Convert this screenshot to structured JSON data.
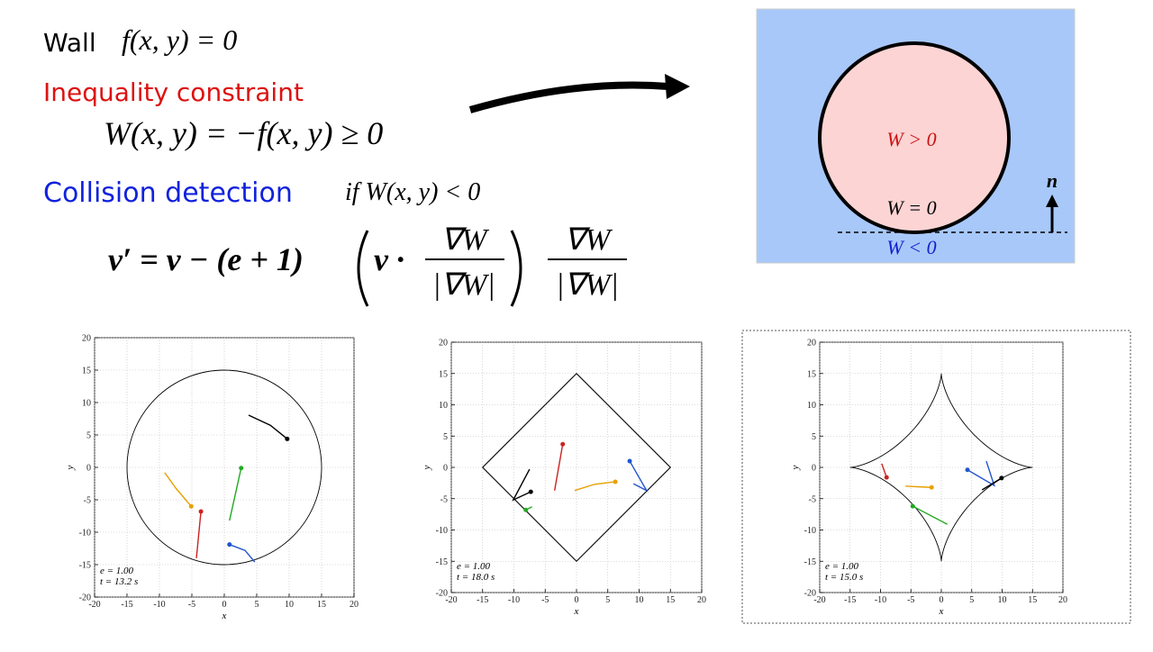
{
  "slide": {
    "wall_label": "Wall",
    "wall_eq": "f(x, y) = 0",
    "constraint_label": "Inequality constraint",
    "constraint_eq": "W(x, y) = −f(x, y) ≥ 0",
    "collision_label": "Collision detection",
    "collision_cond": "if  W(x, y) < 0",
    "formula": {
      "lhs": "v′ = v − (e + 1)",
      "dot": "v ·",
      "numerator": "∇W",
      "denominator": "|∇W|"
    }
  },
  "diagram": {
    "inside": "W > 0",
    "boundary": "W = 0",
    "outside": "W < 0",
    "normal": "n"
  },
  "chart_data": [
    {
      "type": "line",
      "wall": {
        "shape": "circle",
        "size": 15
      },
      "xlim": [
        -20,
        20
      ],
      "ylim": [
        -20,
        20
      ],
      "xticks": [
        -20,
        -15,
        -10,
        -5,
        0,
        5,
        10,
        15,
        20
      ],
      "yticks": [
        -20,
        -15,
        -10,
        -5,
        0,
        5,
        10,
        15,
        20
      ],
      "xlabel": "x",
      "ylabel": "y",
      "annotations": [
        "e = 1.00",
        "t = 13.2 s"
      ],
      "grid": true,
      "series": [
        {
          "color": "#000000",
          "x": [
            3.75,
            7.1,
            9.7
          ],
          "y": [
            8.05,
            6.5,
            4.4
          ]
        },
        {
          "color": "#22aa22",
          "x": [
            0.8,
            2.6
          ],
          "y": [
            -8.2,
            -0.1
          ]
        },
        {
          "color": "#e8a000",
          "x": [
            -9.2,
            -7.4,
            -5.1
          ],
          "y": [
            -0.8,
            -3.3,
            -6.0
          ]
        },
        {
          "color": "#cc2222",
          "x": [
            -4.3,
            -3.6
          ],
          "y": [
            -14.0,
            -6.8
          ]
        },
        {
          "color": "#2255cc",
          "x": [
            4.7,
            3.2,
            0.8
          ],
          "y": [
            -14.6,
            -12.8,
            -11.9
          ]
        }
      ]
    },
    {
      "type": "line",
      "wall": {
        "shape": "diamond",
        "size": 15
      },
      "xlim": [
        -20,
        20
      ],
      "ylim": [
        -20,
        20
      ],
      "xticks": [
        -20,
        -15,
        -10,
        -5,
        0,
        5,
        10,
        15,
        20
      ],
      "yticks": [
        -20,
        -15,
        -10,
        -5,
        0,
        5,
        10,
        15,
        20
      ],
      "xlabel": "x",
      "ylabel": "y",
      "annotations": [
        "e = 1.00",
        "t = 18.0 s"
      ],
      "grid": true,
      "series": [
        {
          "color": "#000000",
          "x": [
            -7.5,
            -10.1,
            -7.3
          ],
          "y": [
            -0.3,
            -5.2,
            -3.9
          ]
        },
        {
          "color": "#cc2222",
          "x": [
            -3.5,
            -2.2
          ],
          "y": [
            -3.7,
            3.7
          ]
        },
        {
          "color": "#e8a000",
          "x": [
            -0.3,
            2.9,
            6.2
          ],
          "y": [
            -3.7,
            -2.7,
            -2.3
          ]
        },
        {
          "color": "#2255cc",
          "x": [
            9.1,
            11.2,
            8.5
          ],
          "y": [
            -2.6,
            -3.7,
            1.0
          ]
        },
        {
          "color": "#22aa22",
          "x": [
            -7.1,
            -8.1
          ],
          "y": [
            -6.3,
            -6.8
          ]
        }
      ]
    },
    {
      "type": "line",
      "wall": {
        "shape": "astroid",
        "size": 15
      },
      "xlim": [
        -20,
        20
      ],
      "ylim": [
        -20,
        20
      ],
      "xticks": [
        -20,
        -15,
        -10,
        -5,
        0,
        5,
        10,
        15,
        20
      ],
      "yticks": [
        -20,
        -15,
        -10,
        -5,
        0,
        5,
        10,
        15,
        20
      ],
      "xlabel": "x",
      "ylabel": "y",
      "annotations": [
        "e = 1.00",
        "t = 15.0 s"
      ],
      "grid": true,
      "series": [
        {
          "color": "#cc2222",
          "x": [
            -9.8,
            -9.0
          ],
          "y": [
            0.6,
            -1.6
          ]
        },
        {
          "color": "#e8a000",
          "x": [
            -5.9,
            -1.6
          ],
          "y": [
            -3.0,
            -3.2
          ]
        },
        {
          "color": "#2255cc",
          "x": [
            7.4,
            8.7,
            4.3
          ],
          "y": [
            1.0,
            -2.9,
            -0.4
          ]
        },
        {
          "color": "#22aa22",
          "x": [
            1.0,
            -4.7
          ],
          "y": [
            -9.1,
            -6.2
          ]
        },
        {
          "color": "#000000",
          "x": [
            6.7,
            9.9
          ],
          "y": [
            -3.6,
            -1.7
          ]
        }
      ]
    }
  ]
}
